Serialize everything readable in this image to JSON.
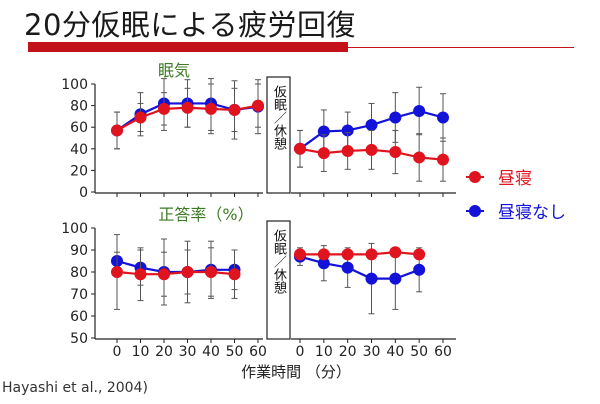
{
  "slide": {
    "title": "20分仮眠による疲労回復",
    "citation": "Hayashi et al., 2004)"
  },
  "colors": {
    "nap": "#e0141e",
    "no_nap": "#1212d8",
    "accent": "#c4121a",
    "panel_title": "#3e7a23"
  },
  "legend": [
    {
      "label": "昼寝",
      "color": "#e0141e"
    },
    {
      "label": "昼寝なし",
      "color": "#1212d8"
    }
  ],
  "chart_data": [
    {
      "type": "line",
      "title": "眠気",
      "xlabel": "作業時間 （分）",
      "ylim": [
        0,
        100
      ],
      "yticks": [
        0,
        20,
        40,
        60,
        80,
        100
      ],
      "divider_label": "仮眠／休憩",
      "x": [
        0,
        10,
        20,
        30,
        40,
        50,
        60
      ],
      "before": {
        "series": [
          {
            "name": "昼寝",
            "values": [
              57,
              69,
              77,
              78,
              77,
              76,
              80
            ],
            "error": [
              17,
              13,
              15,
              18,
              23,
              20,
              20
            ]
          },
          {
            "name": "昼寝なし",
            "values": [
              57,
              72,
              82,
              82,
              82,
              76,
              79
            ],
            "error": [
              17,
              20,
              25,
              22,
              25,
              27,
              25
            ]
          }
        ]
      },
      "after": {
        "series": [
          {
            "name": "昼寝",
            "values": [
              40,
              36,
              38,
              39,
              37,
              32,
              30
            ],
            "error": [
              17,
              17,
              17,
              18,
              20,
              22,
              20
            ]
          },
          {
            "name": "昼寝なし",
            "values": [
              40,
              56,
              57,
              62,
              69,
              75,
              69
            ],
            "error": [
              17,
              20,
              17,
              20,
              23,
              22,
              22
            ]
          }
        ]
      }
    },
    {
      "type": "line",
      "title": "正答率（%）",
      "xlabel": "作業時間 （分）",
      "ylim": [
        50,
        100
      ],
      "yticks": [
        50,
        60,
        70,
        80,
        90,
        100
      ],
      "divider_label": "仮眠／休憩",
      "x": [
        0,
        10,
        20,
        30,
        40,
        50,
        60
      ],
      "x_tick_labels": [
        "0",
        "10",
        "20",
        "30",
        "40",
        "50",
        "60"
      ],
      "before": {
        "series": [
          {
            "name": "昼寝",
            "values": [
              80,
              79,
              79,
              80,
              80,
              79,
              null
            ],
            "error": [
              17,
              12,
              10,
              10,
              11,
              11,
              null
            ]
          },
          {
            "name": "昼寝なし",
            "values": [
              85,
              82,
              80,
              80,
              81,
              81,
              null
            ],
            "error": [
              4,
              8,
              15,
              14,
              13,
              9,
              null
            ]
          }
        ]
      },
      "after": {
        "series": [
          {
            "name": "昼寝",
            "values": [
              88,
              88,
              88,
              88,
              89,
              88,
              null
            ],
            "error": [
              2,
              2,
              2,
              2,
              2,
              2,
              null
            ]
          },
          {
            "name": "昼寝なし",
            "values": [
              87,
              84,
              82,
              77,
              77,
              81,
              null
            ],
            "error": [
              4,
              8,
              9,
              16,
              14,
              10,
              null
            ]
          }
        ]
      }
    }
  ]
}
